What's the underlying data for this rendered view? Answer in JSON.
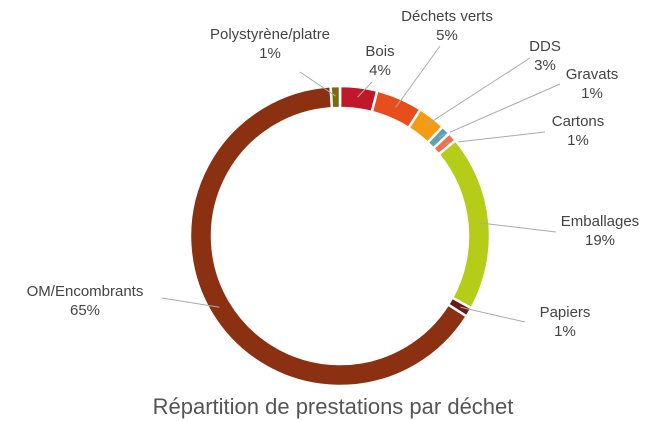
{
  "chart_data": {
    "type": "donut",
    "title": "Répartition de prestations par déchet",
    "categories": [
      "Bois",
      "Déchets verts",
      "DDS",
      "Gravats",
      "Cartons",
      "Emballages",
      "Papiers",
      "OM/Encombrants",
      "Polystyrène/platre"
    ],
    "values": [
      4,
      5,
      3,
      1,
      1,
      19,
      1,
      65,
      1
    ],
    "value_labels": [
      "4%",
      "5%",
      "3%",
      "1%",
      "1%",
      "19%",
      "1%",
      "65%",
      "1%"
    ],
    "colors": [
      "#c0182a",
      "#e84e1b",
      "#f39c12",
      "#5ba3b0",
      "#f07050",
      "#b5cc18",
      "#6b1a1a",
      "#8b3010",
      "#7a6a10"
    ]
  }
}
